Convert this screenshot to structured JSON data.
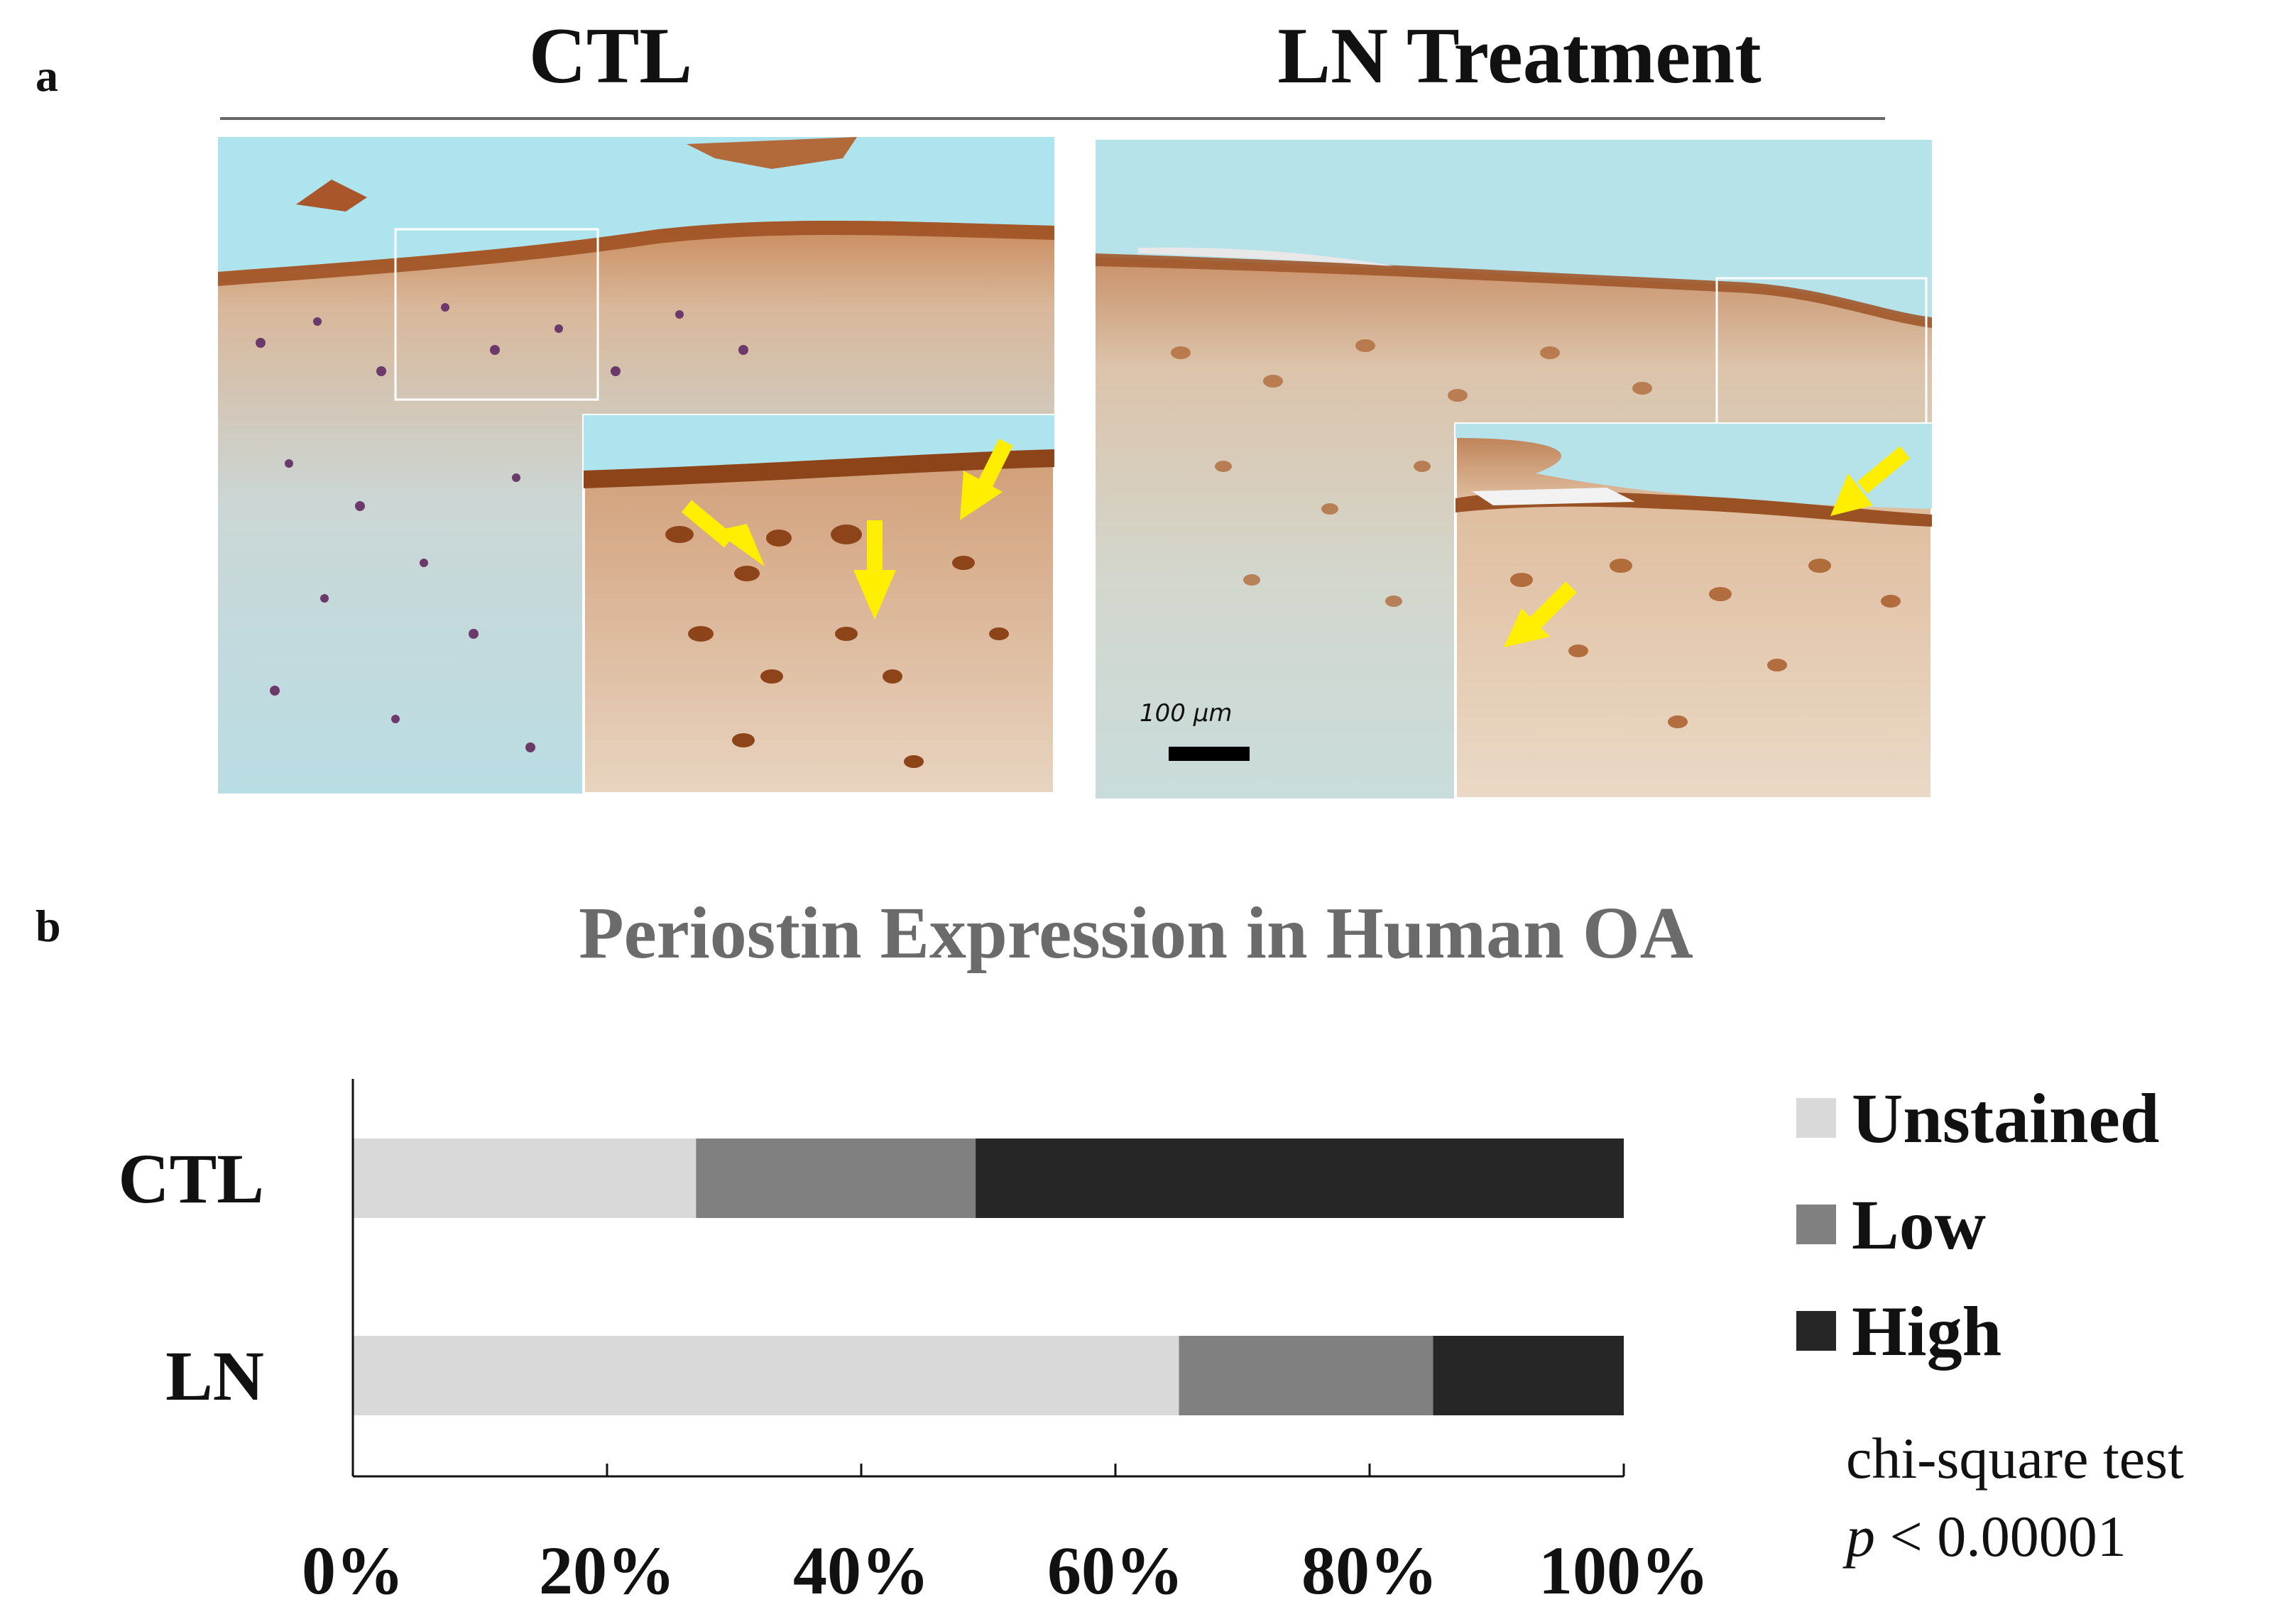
{
  "figure": {
    "panel_a_letter": "a",
    "panel_b_letter": "b",
    "panel_a": {
      "columns": [
        {
          "title": "CTL"
        },
        {
          "title": "LN Treatment"
        }
      ],
      "scale_bar_label": "100 µm"
    }
  },
  "chart_data": {
    "type": "bar",
    "orientation": "horizontal",
    "stacked": true,
    "title": "Periostin Expression in Human OA",
    "categories": [
      "CTL",
      "LN"
    ],
    "series": [
      {
        "name": "Unstained",
        "color": "#d9d9d9",
        "values": [
          27,
          65
        ]
      },
      {
        "name": "Low",
        "color": "#808080",
        "values": [
          22,
          20
        ]
      },
      {
        "name": "High",
        "color": "#262626",
        "values": [
          51,
          15
        ]
      }
    ],
    "xlim": [
      0,
      100
    ],
    "x_ticks": [
      "0%",
      "20%",
      "40%",
      "60%",
      "80%",
      "100%"
    ],
    "legend_position": "right",
    "annotation": {
      "line1": "chi-square test",
      "p_symbol": "p",
      "p_rest": " < 0.00001"
    }
  }
}
